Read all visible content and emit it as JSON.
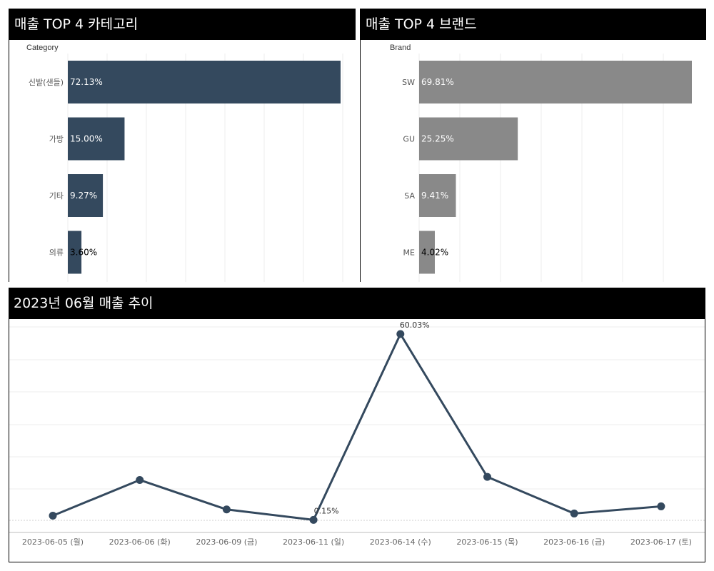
{
  "category_panel": {
    "title": "매출 TOP 4 카테고리",
    "axis_header": "Category"
  },
  "brand_panel": {
    "title": "매출 TOP 4 브랜드",
    "axis_header": "Brand"
  },
  "trend_panel": {
    "title": "2023년 06월 매출 추이"
  },
  "colors": {
    "category_bar": "#34495e",
    "brand_bar": "#898989",
    "line": "#34495e",
    "header_bg": "#000000"
  },
  "chart_data": [
    {
      "type": "bar",
      "orientation": "horizontal",
      "title": "매출 TOP 4 카테고리",
      "ylabel": "Category",
      "categories": [
        "신발(샌들)",
        "가방",
        "기타",
        "의류"
      ],
      "values": [
        72.13,
        15.0,
        9.27,
        3.6
      ],
      "value_labels": [
        "72.13%",
        "15.00%",
        "9.27%",
        "3.60%"
      ],
      "xlim": [
        0,
        72.13
      ]
    },
    {
      "type": "bar",
      "orientation": "horizontal",
      "title": "매출 TOP 4 브랜드",
      "ylabel": "Brand",
      "categories": [
        "SW",
        "GU",
        "SA",
        "ME"
      ],
      "values": [
        69.81,
        25.25,
        9.41,
        4.02
      ],
      "value_labels": [
        "69.81%",
        "25.25%",
        "9.41%",
        "4.02%"
      ],
      "xlim": [
        0,
        69.81
      ]
    },
    {
      "type": "line",
      "title": "2023년 06월 매출 추이",
      "x": [
        "2023-06-05 (월)",
        "2023-06-06 (화)",
        "2023-06-09 (금)",
        "2023-06-11 (일)",
        "2023-06-14 (수)",
        "2023-06-15 (목)",
        "2023-06-16 (금)",
        "2023-06-17 (토)"
      ],
      "values": [
        1.5,
        13.0,
        3.5,
        0.15,
        60.03,
        14.0,
        2.2,
        4.5
      ],
      "annotations": [
        {
          "index": 3,
          "label": "0.15%"
        },
        {
          "index": 4,
          "label": "60.03%"
        }
      ],
      "ylim": [
        0,
        60.03
      ]
    }
  ]
}
